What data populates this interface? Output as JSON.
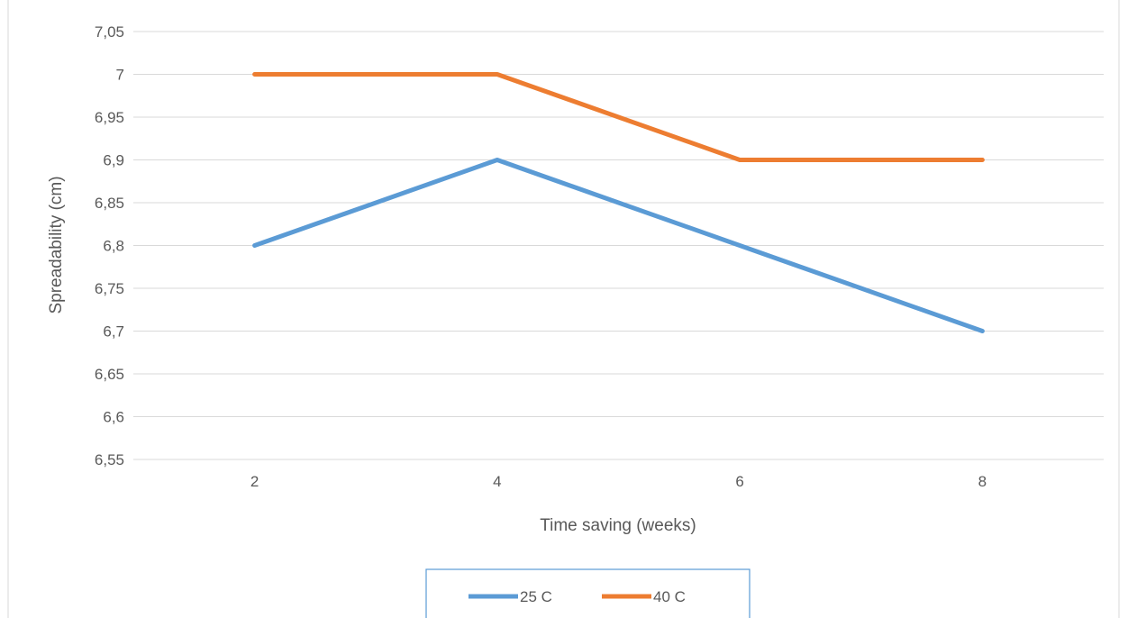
{
  "chart_data": {
    "type": "line",
    "categories": [
      "2",
      "4",
      "6",
      "8"
    ],
    "series": [
      {
        "name": "25 C",
        "values": [
          6.8,
          6.9,
          6.8,
          6.7
        ],
        "color": "#5b9bd5"
      },
      {
        "name": "40 C",
        "values": [
          7.0,
          7.0,
          6.9,
          6.9
        ],
        "color": "#ed7d31"
      }
    ],
    "yticks": [
      "6,55",
      "6,6",
      "6,65",
      "6,7",
      "6,75",
      "6,8",
      "6,85",
      "6,9",
      "6,95",
      "7",
      "7,05"
    ],
    "xlabel": "Time saving (weeks)",
    "ylabel": "Spreadability (cm)",
    "ylim": [
      6.55,
      7.05
    ],
    "grid": true,
    "legend_position": "bottom"
  }
}
